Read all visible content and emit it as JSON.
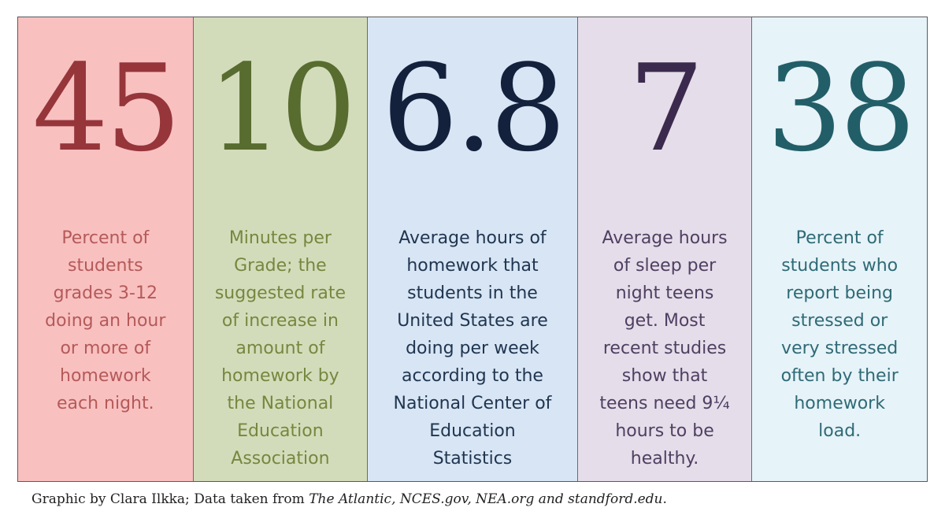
{
  "colors": {
    "panel_backgrounds": [
      "#f9c0c0",
      "#d3dcba",
      "#d8e5f4",
      "#e5dde9",
      "#e6f3f8"
    ],
    "stat_colors": [
      "#96363a",
      "#586c30",
      "#13213d",
      "#3c2a4e",
      "#225e68"
    ]
  },
  "panels": [
    {
      "stat": "45",
      "description": "Percent of\nstudents\ngrades 3-12\ndoing an hour\nor more of\nhomework\neach night."
    },
    {
      "stat": "10",
      "description": "Minutes per\nGrade; the\nsuggested rate\nof increase in\namount of\nhomework by\nthe National\nEducation\nAssociation"
    },
    {
      "stat": "6.8",
      "description": "Average hours of\nhomework that\nstudents in the\nUnited States are\ndoing per week\naccording to the\nNational Center of\nEducation\nStatistics"
    },
    {
      "stat": "7",
      "description": "Average hours\nof sleep per\nnight teens\nget. Most\nrecent studies\nshow that\nteens need 9¼\nhours to be\nhealthy."
    },
    {
      "stat": "38",
      "description": "Percent of\nstudents who\nreport being\nstressed or\nvery stressed\noften by their\nhomework\nload."
    }
  ],
  "credit": {
    "prefix": "Graphic by Clara Ilkka; Data taken from ",
    "source_1": "The Atlantic",
    "sep_1": ", ",
    "source_2": "NCES.gov",
    "sep_2": ", ",
    "source_3": "NEA.org",
    "sep_3": " and ",
    "source_4": "standford.edu",
    "suffix": "."
  }
}
